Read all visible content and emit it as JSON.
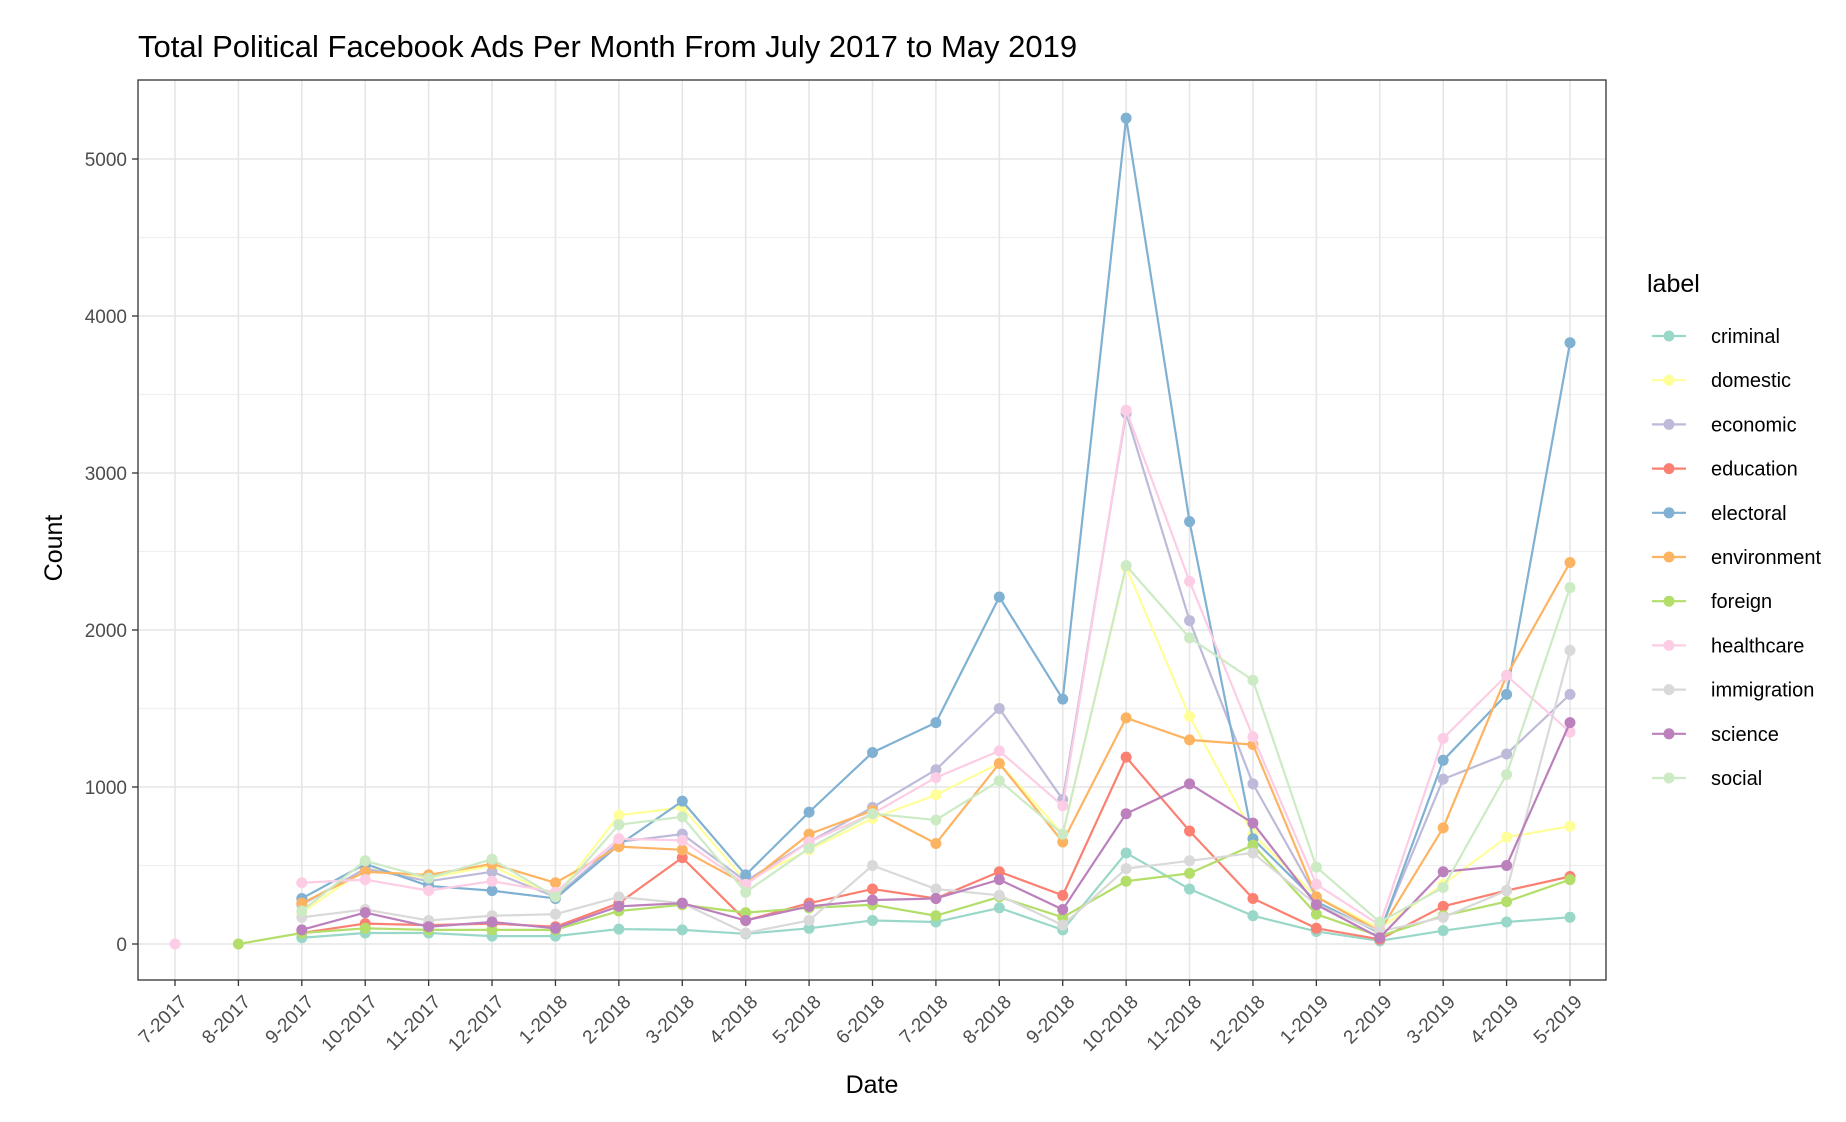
{
  "chart_data": {
    "type": "line",
    "title": "Total Political Facebook Ads Per Month From July 2017 to May 2019",
    "xlabel": "Date",
    "ylabel": "Count",
    "ylim": [
      0,
      5000
    ],
    "yticks": [
      0,
      1000,
      2000,
      3000,
      4000,
      5000
    ],
    "grid": true,
    "legend_title": "label",
    "legend_position": "right",
    "categories": [
      "7-2017",
      "8-2017",
      "9-2017",
      "10-2017",
      "11-2017",
      "12-2017",
      "1-2018",
      "2-2018",
      "3-2018",
      "4-2018",
      "5-2018",
      "6-2018",
      "7-2018",
      "8-2018",
      "9-2018",
      "10-2018",
      "11-2018",
      "12-2018",
      "1-2019",
      "2-2019",
      "3-2019",
      "4-2019",
      "5-2019"
    ],
    "series": [
      {
        "name": "criminal",
        "color": "#99d8c9",
        "values": [
          null,
          null,
          40,
          70,
          70,
          50,
          50,
          95,
          90,
          65,
          100,
          150,
          140,
          230,
          90,
          580,
          350,
          180,
          80,
          20,
          85,
          140,
          170
        ]
      },
      {
        "name": "domestic",
        "color": "#ffff99",
        "values": [
          null,
          null,
          200,
          480,
          420,
          500,
          300,
          820,
          870,
          400,
          600,
          800,
          950,
          1150,
          700,
          2400,
          1450,
          700,
          300,
          100,
          380,
          680,
          750
        ]
      },
      {
        "name": "economic",
        "color": "#bebada",
        "values": [
          null,
          null,
          250,
          480,
          400,
          460,
          300,
          650,
          700,
          400,
          650,
          870,
          1110,
          1500,
          920,
          3380,
          2060,
          1020,
          300,
          80,
          1050,
          1210,
          1590
        ]
      },
      {
        "name": "education",
        "color": "#fb8072",
        "values": [
          null,
          null,
          70,
          130,
          120,
          130,
          110,
          260,
          550,
          150,
          260,
          350,
          290,
          460,
          310,
          1190,
          720,
          290,
          100,
          30,
          240,
          340,
          430
        ]
      },
      {
        "name": "electoral",
        "color": "#80b1d3",
        "values": [
          null,
          null,
          290,
          510,
          370,
          340,
          290,
          630,
          910,
          440,
          840,
          1220,
          1410,
          2210,
          1560,
          5260,
          2690,
          670,
          270,
          70,
          1170,
          1590,
          3830
        ]
      },
      {
        "name": "environment",
        "color": "#fdb462",
        "values": [
          null,
          null,
          260,
          460,
          440,
          510,
          390,
          620,
          600,
          380,
          700,
          850,
          640,
          1150,
          650,
          1440,
          1300,
          1270,
          300,
          80,
          740,
          1710,
          2430
        ]
      },
      {
        "name": "foreign",
        "color": "#b3de69",
        "values": [
          null,
          0,
          70,
          100,
          90,
          90,
          90,
          210,
          250,
          200,
          230,
          250,
          180,
          300,
          170,
          400,
          450,
          630,
          190,
          50,
          180,
          270,
          410
        ]
      },
      {
        "name": "healthcare",
        "color": "#fccde5",
        "values": [
          0,
          null,
          390,
          410,
          340,
          400,
          330,
          670,
          660,
          380,
          650,
          830,
          1060,
          1230,
          880,
          3400,
          2310,
          1320,
          380,
          120,
          1310,
          1710,
          1350
        ]
      },
      {
        "name": "immigration",
        "color": "#d9d9d9",
        "values": [
          null,
          null,
          170,
          220,
          150,
          180,
          190,
          300,
          260,
          70,
          150,
          500,
          350,
          310,
          120,
          480,
          530,
          580,
          250,
          80,
          170,
          340,
          1870
        ]
      },
      {
        "name": "science",
        "color": "#bc80bd",
        "values": [
          null,
          null,
          90,
          200,
          110,
          140,
          100,
          240,
          260,
          150,
          240,
          280,
          290,
          410,
          220,
          830,
          1020,
          770,
          250,
          40,
          460,
          500,
          1410
        ]
      },
      {
        "name": "social",
        "color": "#ccebc5",
        "values": [
          null,
          null,
          210,
          530,
          420,
          540,
          300,
          760,
          810,
          330,
          610,
          830,
          790,
          1040,
          700,
          2410,
          1950,
          1680,
          490,
          140,
          360,
          1080,
          2270
        ]
      }
    ]
  }
}
